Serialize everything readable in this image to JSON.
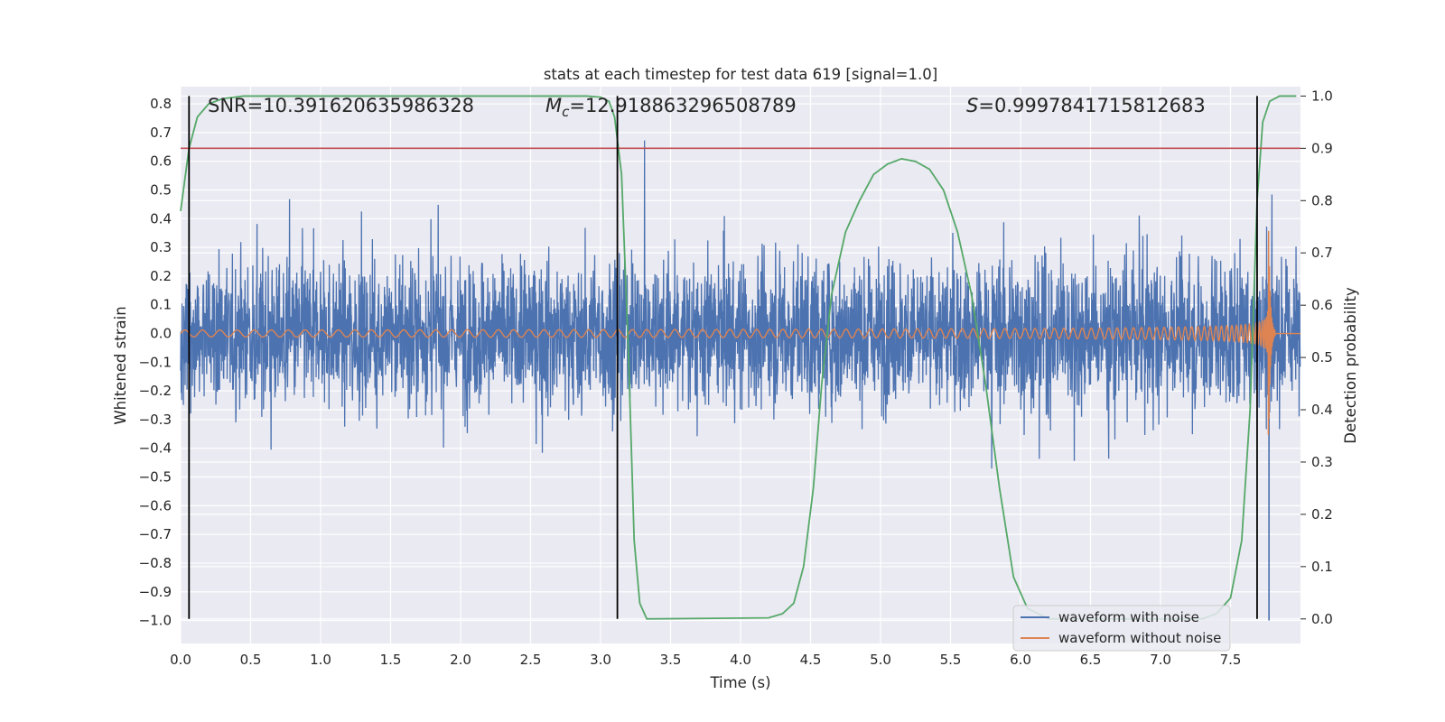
{
  "chart_data": {
    "type": "line",
    "title": "stats at each timestep for test data 619 [signal=1.0]",
    "xlabel": "Time (s)",
    "ylabel": "Whitened strain",
    "y2label": "Detection probability",
    "xlim": [
      0.0,
      8.0
    ],
    "ylim": [
      -1.08,
      0.86
    ],
    "y2lim": [
      -0.047,
      1.018
    ],
    "xticks": [
      "0.0",
      "0.5",
      "1.0",
      "1.5",
      "2.0",
      "2.5",
      "3.0",
      "3.5",
      "4.0",
      "4.5",
      "5.0",
      "5.5",
      "6.0",
      "6.5",
      "7.0",
      "7.5"
    ],
    "yticks": [
      "0.8",
      "0.7",
      "0.6",
      "0.5",
      "0.4",
      "0.3",
      "0.2",
      "0.1",
      "0.0",
      "-0.1",
      "-0.2",
      "-0.3",
      "-0.4",
      "-0.5",
      "-0.6",
      "-0.7",
      "-0.8",
      "-0.9",
      "-1.0"
    ],
    "y2ticks": [
      "1.0",
      "0.9",
      "0.8",
      "0.7",
      "0.6",
      "0.5",
      "0.4",
      "0.3",
      "0.2",
      "0.1",
      "0.0"
    ],
    "annotations": {
      "snr": "SNR=10.391620635986328",
      "mc_symbol": "M",
      "mc_sub": "c",
      "mc_value": "=12.918863296508789",
      "s_symbol": "S",
      "s_value": "=0.9997841715812683"
    },
    "threshold": {
      "value": 0.9,
      "axis": "y2",
      "color": "#c44e52"
    },
    "vertical_lines": [
      0.06,
      3.12,
      7.69
    ],
    "series": [
      {
        "name": "waveform with noise",
        "color": "#4c72b0",
        "axis": "y",
        "noise_level": 0.18,
        "envelope": [
          -0.75,
          0.78
        ]
      },
      {
        "name": "waveform without noise",
        "color": "#dd8452",
        "axis": "y",
        "chirp_peak_time": 7.77,
        "peak_amplitude": [
          -0.52,
          0.4
        ]
      },
      {
        "name": "Detection probability",
        "color": "#55a868",
        "axis": "y2",
        "points": [
          [
            0.0,
            0.78
          ],
          [
            0.06,
            0.9
          ],
          [
            0.12,
            0.96
          ],
          [
            0.2,
            0.985
          ],
          [
            0.3,
            0.995
          ],
          [
            0.45,
            1.0
          ],
          [
            2.9,
            1.0
          ],
          [
            3.0,
            0.998
          ],
          [
            3.06,
            0.99
          ],
          [
            3.1,
            0.96
          ],
          [
            3.15,
            0.85
          ],
          [
            3.2,
            0.5
          ],
          [
            3.24,
            0.15
          ],
          [
            3.28,
            0.03
          ],
          [
            3.33,
            0.0
          ],
          [
            4.2,
            0.002
          ],
          [
            4.3,
            0.01
          ],
          [
            4.38,
            0.03
          ],
          [
            4.45,
            0.1
          ],
          [
            4.52,
            0.25
          ],
          [
            4.58,
            0.45
          ],
          [
            4.65,
            0.62
          ],
          [
            4.75,
            0.74
          ],
          [
            4.85,
            0.8
          ],
          [
            4.95,
            0.85
          ],
          [
            5.05,
            0.87
          ],
          [
            5.15,
            0.88
          ],
          [
            5.25,
            0.875
          ],
          [
            5.35,
            0.86
          ],
          [
            5.45,
            0.82
          ],
          [
            5.55,
            0.74
          ],
          [
            5.65,
            0.62
          ],
          [
            5.75,
            0.45
          ],
          [
            5.85,
            0.25
          ],
          [
            5.95,
            0.08
          ],
          [
            6.05,
            0.02
          ],
          [
            6.2,
            0.0
          ],
          [
            7.3,
            0.0
          ],
          [
            7.4,
            0.01
          ],
          [
            7.5,
            0.04
          ],
          [
            7.58,
            0.15
          ],
          [
            7.64,
            0.4
          ],
          [
            7.69,
            0.8
          ],
          [
            7.73,
            0.95
          ],
          [
            7.78,
            0.99
          ],
          [
            7.85,
            1.0
          ],
          [
            7.97,
            1.0
          ]
        ]
      }
    ],
    "legend_position": "lower-right"
  }
}
